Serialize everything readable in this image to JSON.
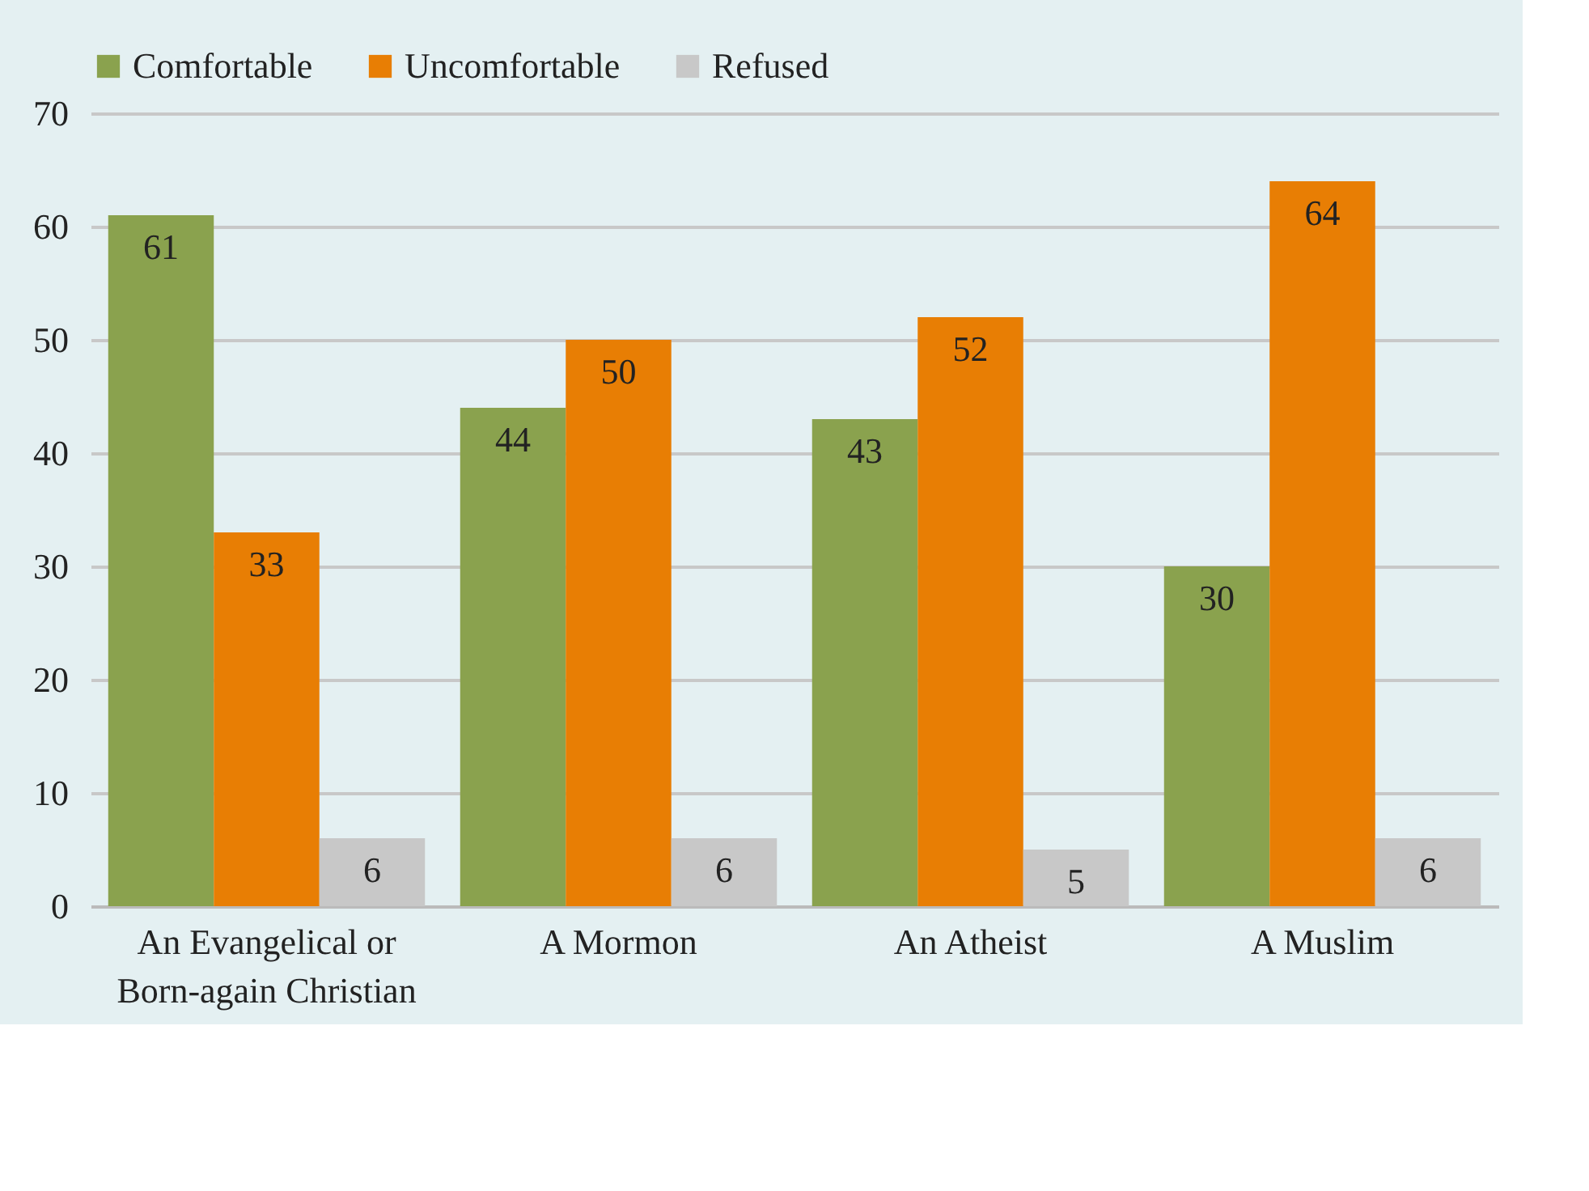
{
  "chart_data": {
    "type": "bar",
    "categories": [
      "An Evangelical or Born-again Christian",
      "A Mormon",
      "An Atheist",
      "A Muslim"
    ],
    "series": [
      {
        "name": "Comfortable",
        "color": "#8aa24e",
        "values": [
          61,
          44,
          43,
          30
        ]
      },
      {
        "name": "Uncomfortable",
        "color": "#e87e04",
        "values": [
          33,
          50,
          52,
          64
        ]
      },
      {
        "name": "Refused",
        "color": "#c8c8c8",
        "values": [
          6,
          6,
          5,
          6
        ]
      }
    ],
    "ylim": [
      0,
      70
    ],
    "yticks": [
      0,
      10,
      20,
      30,
      40,
      50,
      60,
      70
    ],
    "grid": "y",
    "legend": "top",
    "data_labels": true
  }
}
